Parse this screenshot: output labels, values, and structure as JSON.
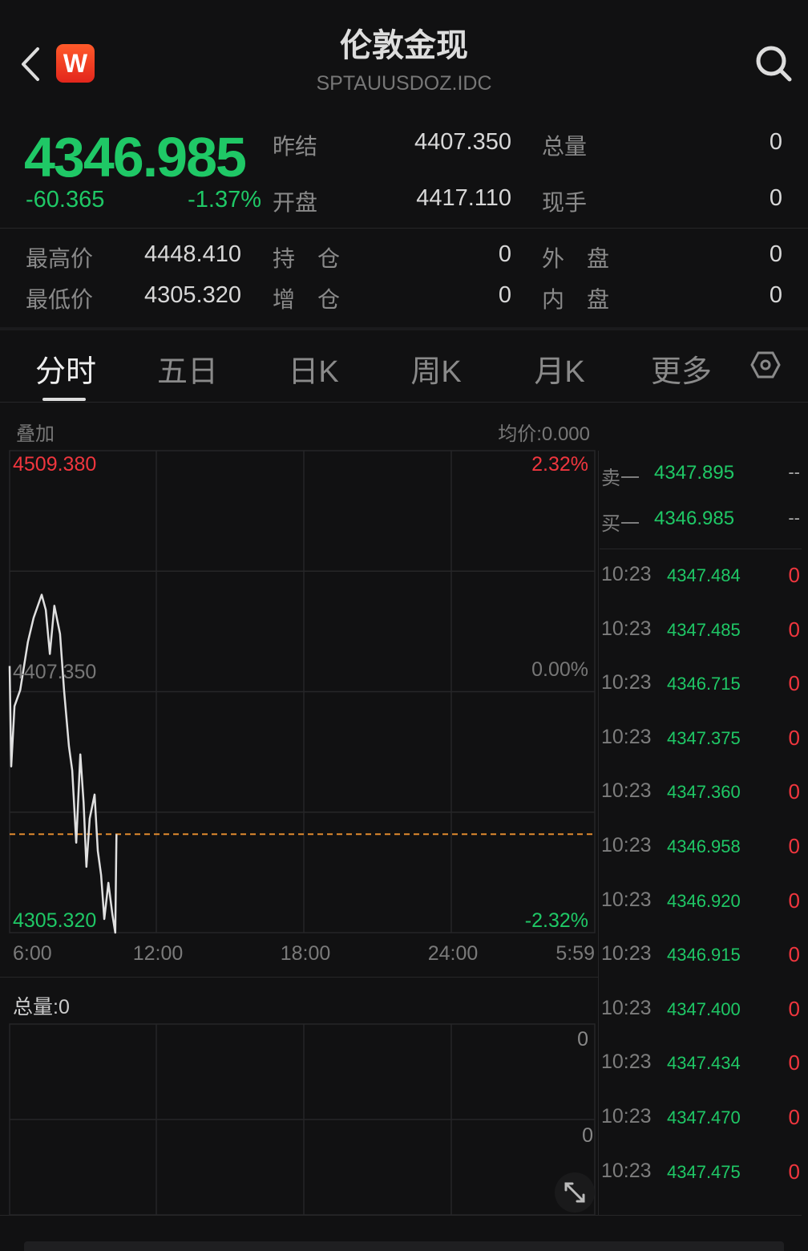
{
  "header": {
    "title": "伦敦金现",
    "code": "SPTAUUSDOZ.IDC",
    "logo_text": "W",
    "back_icon": "chevron-left-icon",
    "search_icon": "search-icon"
  },
  "quote": {
    "price": "4346.985",
    "change": "-60.365",
    "change_pct": "-1.37%",
    "stats": [
      {
        "label": "昨结",
        "value": "4407.350"
      },
      {
        "label": "总量",
        "value": "0"
      },
      {
        "label": "开盘",
        "value": "4417.110"
      },
      {
        "label": "现手",
        "value": "0"
      },
      {
        "label": "最高价",
        "value": "4448.410"
      },
      {
        "label": "持　仓",
        "value": "0"
      },
      {
        "label": "外　盘",
        "value": "0"
      },
      {
        "label": "最低价",
        "value": "4305.320"
      },
      {
        "label": "增　仓",
        "value": "0"
      },
      {
        "label": "内　盘",
        "value": "0"
      }
    ]
  },
  "tabs": [
    {
      "label": "分时",
      "active": true
    },
    {
      "label": "五日"
    },
    {
      "label": "日K"
    },
    {
      "label": "周K"
    },
    {
      "label": "月K"
    },
    {
      "label": "更多"
    }
  ],
  "chart_header": {
    "overlay": "叠加",
    "avg_price": "均价:0.000"
  },
  "colors": {
    "up": "#f0363e",
    "down": "#1fc866",
    "line": "#e0e0e0",
    "current_price_line": "#e08a2e"
  },
  "chart_data": {
    "type": "line",
    "y_labels": {
      "max": "4509.380",
      "max_pct": "2.32%",
      "mid": "4407.350",
      "mid_pct": "0.00%",
      "min": "4305.320",
      "min_pct": "-2.32%"
    },
    "ylim": [
      4305.32,
      4509.38
    ],
    "x_ticks": [
      "6:00",
      "12:00",
      "18:00",
      "24:00",
      "5:59"
    ],
    "reference_price": 4407.35,
    "current_price": 4346.985,
    "points": [
      [
        "6:00",
        4418.2
      ],
      [
        "6:04",
        4375.7
      ],
      [
        "6:12",
        4401.2
      ],
      [
        "6:26",
        4408.0
      ],
      [
        "6:45",
        4428.4
      ],
      [
        "6:59",
        4438.6
      ],
      [
        "7:19",
        4448.41
      ],
      [
        "7:29",
        4442.0
      ],
      [
        "7:39",
        4423.3
      ],
      [
        "7:50",
        4443.7
      ],
      [
        "8:04",
        4431.8
      ],
      [
        "8:14",
        4408.0
      ],
      [
        "8:26",
        4384.2
      ],
      [
        "8:34",
        4374.0
      ],
      [
        "8:44",
        4343.4
      ],
      [
        "8:54",
        4380.8
      ],
      [
        "9:02",
        4360.4
      ],
      [
        "9:09",
        4333.2
      ],
      [
        "9:17",
        4353.6
      ],
      [
        "9:29",
        4363.8
      ],
      [
        "9:37",
        4340.0
      ],
      [
        "9:45",
        4329.8
      ],
      [
        "9:53",
        4311.1
      ],
      [
        "10:03",
        4326.4
      ],
      [
        "10:13",
        4312.8
      ],
      [
        "10:20",
        4305.32
      ],
      [
        "10:23",
        4346.985
      ]
    ]
  },
  "volume": {
    "label": "总量:0",
    "top_value": "0",
    "mid_value": "0",
    "expand_icon": "expand-icon"
  },
  "order_book": [
    {
      "label": "卖一",
      "price": "4347.895",
      "volume": "--"
    },
    {
      "label": "买一",
      "price": "4346.985",
      "volume": "--"
    }
  ],
  "trades": [
    {
      "time": "10:23",
      "price": "4347.484",
      "volume": "0"
    },
    {
      "time": "10:23",
      "price": "4347.485",
      "volume": "0"
    },
    {
      "time": "10:23",
      "price": "4346.715",
      "volume": "0"
    },
    {
      "time": "10:23",
      "price": "4347.375",
      "volume": "0"
    },
    {
      "time": "10:23",
      "price": "4347.360",
      "volume": "0"
    },
    {
      "time": "10:23",
      "price": "4346.958",
      "volume": "0"
    },
    {
      "time": "10:23",
      "price": "4346.920",
      "volume": "0"
    },
    {
      "time": "10:23",
      "price": "4346.915",
      "volume": "0"
    },
    {
      "time": "10:23",
      "price": "4347.400",
      "volume": "0"
    },
    {
      "time": "10:23",
      "price": "4347.434",
      "volume": "0"
    },
    {
      "time": "10:23",
      "price": "4347.470",
      "volume": "0"
    },
    {
      "time": "10:23",
      "price": "4347.475",
      "volume": "0"
    }
  ]
}
